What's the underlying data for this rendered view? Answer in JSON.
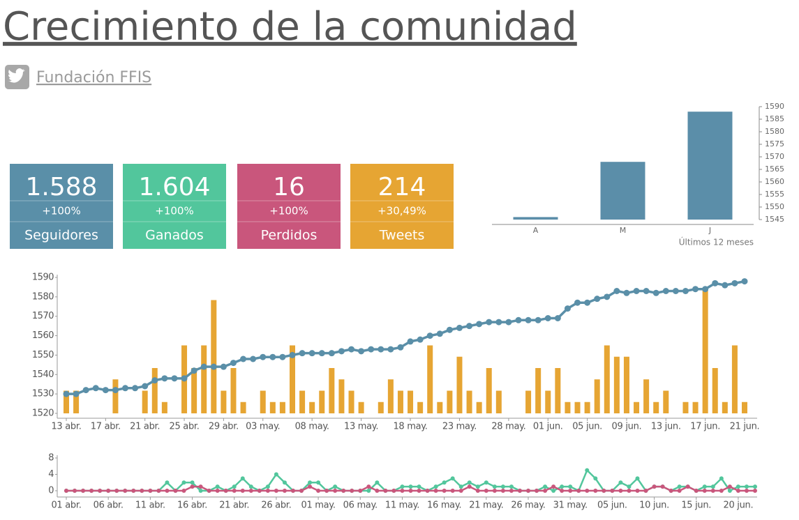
{
  "header": {
    "title": "Crecimiento de la comunidad",
    "account": "Fundación FFIS"
  },
  "kpis": [
    {
      "value": "1.588",
      "change": "+100%",
      "label": "Seguidores",
      "color": "#5a8fa8"
    },
    {
      "value": "1.604",
      "change": "+100%",
      "label": "Ganados",
      "color": "#52c69c"
    },
    {
      "value": "16",
      "change": "+100%",
      "label": "Perdidos",
      "color": "#c9567c"
    },
    {
      "value": "214",
      "change": "+30,49%",
      "label": "Tweets",
      "color": "#e6a533"
    }
  ],
  "chart_data": [
    {
      "type": "bar",
      "categories": [
        "A",
        "M",
        "J"
      ],
      "values": [
        1546,
        1568,
        1588
      ],
      "color": "#5b8ea9",
      "ylim": [
        1545,
        1590
      ],
      "yticks": [
        1545,
        1550,
        1555,
        1560,
        1565,
        1570,
        1575,
        1580,
        1585,
        1590
      ],
      "x_label": "Últimos 12 meses",
      "y_axis_side": "right"
    },
    {
      "type": "combo",
      "categories": [
        "13 abr.",
        null,
        null,
        null,
        "17 abr.",
        null,
        null,
        null,
        "21 abr.",
        null,
        null,
        null,
        "25 abr.",
        null,
        null,
        null,
        "29 abr.",
        null,
        null,
        null,
        "03 may.",
        null,
        null,
        null,
        null,
        "08 may.",
        null,
        null,
        null,
        null,
        "13 may.",
        null,
        null,
        null,
        null,
        "18 may.",
        null,
        null,
        null,
        null,
        "23 may.",
        null,
        null,
        null,
        null,
        "28 may.",
        null,
        null,
        null,
        "01 jun.",
        null,
        null,
        null,
        "05 jun.",
        null,
        null,
        null,
        "09 jun.",
        null,
        null,
        null,
        "13 jun.",
        null,
        null,
        null,
        "17 jun.",
        null,
        null,
        null,
        "21 jun."
      ],
      "series": [
        {
          "type": "bar",
          "axis": "y2",
          "color": "#e6a533",
          "values": [
            2,
            2,
            0,
            0,
            0,
            3,
            0,
            0,
            2,
            4,
            1,
            0,
            6,
            4,
            6,
            10,
            2,
            4,
            1,
            0,
            2,
            1,
            1,
            6,
            2,
            1,
            2,
            4,
            3,
            2,
            1,
            0,
            1,
            3,
            2,
            2,
            1,
            6,
            1,
            2,
            5,
            2,
            1,
            4,
            2,
            0,
            0,
            2,
            4,
            2,
            4,
            1,
            1,
            1,
            3,
            6,
            5,
            5,
            1,
            3,
            1,
            2,
            0,
            1,
            1,
            11,
            4,
            1,
            6,
            1
          ]
        },
        {
          "type": "line",
          "color": "#5a8fa8",
          "values": [
            1530,
            1530,
            1532,
            1533,
            1532,
            1532,
            1533,
            1533,
            1534,
            1537,
            1538,
            1538,
            1538,
            1542,
            1544,
            1544,
            1544,
            1546,
            1548,
            1548,
            1549,
            1549,
            1549,
            1550,
            1551,
            1551,
            1551,
            1551,
            1552,
            1553,
            1552,
            1553,
            1553,
            1553,
            1554,
            1557,
            1558,
            1560,
            1561,
            1563,
            1564,
            1565,
            1566,
            1567,
            1567,
            1567,
            1568,
            1568,
            1568,
            1569,
            1569,
            1574,
            1577,
            1577,
            1579,
            1580,
            1583,
            1582,
            1583,
            1583,
            1582,
            1583,
            1583,
            1583,
            1584,
            1584,
            1587,
            1586,
            1587,
            1588
          ]
        }
      ],
      "ylim": [
        1520,
        1590
      ],
      "yticks": [
        1520,
        1530,
        1540,
        1550,
        1560,
        1570,
        1580,
        1590
      ],
      "y2lim": [
        0,
        12
      ]
    },
    {
      "type": "line",
      "categories": [
        "01 abr.",
        null,
        null,
        null,
        null,
        "06 abr.",
        null,
        null,
        null,
        null,
        "11 abr.",
        null,
        null,
        null,
        null,
        "16 abr.",
        null,
        null,
        null,
        null,
        "21 abr.",
        null,
        null,
        null,
        null,
        "26 abr.",
        null,
        null,
        null,
        null,
        "01 may.",
        null,
        null,
        null,
        null,
        "06 may.",
        null,
        null,
        null,
        null,
        "11 may.",
        null,
        null,
        null,
        null,
        "16 may.",
        null,
        null,
        null,
        null,
        "21 may.",
        null,
        null,
        null,
        null,
        "26 may.",
        null,
        null,
        null,
        null,
        "31 may.",
        null,
        null,
        null,
        null,
        "05 jun.",
        null,
        null,
        null,
        null,
        "10 jun.",
        null,
        null,
        null,
        null,
        "15 jun.",
        null,
        null,
        null,
        null,
        "20 jun.",
        null,
        null
      ],
      "series": [
        {
          "color": "#52c69c",
          "values": [
            0,
            0,
            0,
            0,
            0,
            0,
            0,
            0,
            0,
            0,
            0,
            0,
            2,
            0,
            2,
            2,
            0,
            0,
            1,
            0,
            1,
            3,
            1,
            0,
            1,
            4,
            2,
            0,
            0,
            2,
            2,
            0,
            1,
            0,
            0,
            0,
            0,
            2,
            0,
            0,
            1,
            1,
            1,
            0,
            1,
            2,
            3,
            1,
            2,
            1,
            2,
            1,
            1,
            1,
            0,
            0,
            0,
            1,
            0,
            1,
            1,
            0,
            5,
            3,
            0,
            0,
            2,
            1,
            3,
            0,
            1,
            1,
            0,
            1,
            1,
            0,
            1,
            1,
            3,
            0,
            1,
            1,
            1
          ]
        },
        {
          "color": "#c9567c",
          "values": [
            0,
            0,
            0,
            0,
            0,
            0,
            0,
            0,
            0,
            0,
            0,
            0,
            0,
            0,
            0,
            1,
            1,
            0,
            0,
            0,
            0,
            0,
            0,
            0,
            0,
            0,
            0,
            0,
            0,
            1,
            0,
            0,
            0,
            0,
            0,
            0,
            1,
            0,
            0,
            0,
            0,
            0,
            0,
            0,
            0,
            0,
            0,
            0,
            1,
            0,
            0,
            0,
            0,
            0,
            0,
            0,
            0,
            0,
            1,
            0,
            0,
            0,
            0,
            0,
            0,
            0,
            0,
            0,
            0,
            0,
            1,
            1,
            0,
            0,
            1,
            0,
            0,
            0,
            0,
            1,
            0,
            0,
            0
          ]
        }
      ],
      "ylim": [
        0,
        8
      ],
      "yticks": [
        0,
        4,
        8
      ]
    }
  ]
}
